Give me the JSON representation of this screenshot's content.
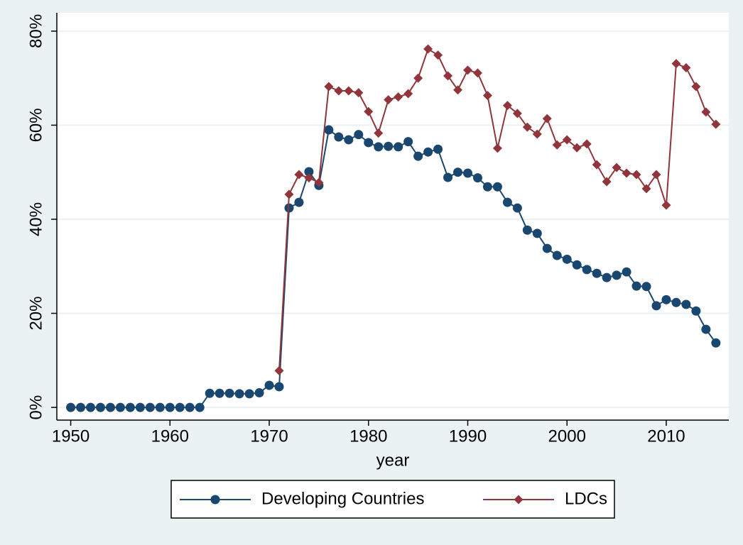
{
  "chart_data": {
    "type": "line",
    "x_label": "year",
    "x": [
      1950,
      1951,
      1952,
      1953,
      1954,
      1955,
      1956,
      1957,
      1958,
      1959,
      1960,
      1961,
      1962,
      1963,
      1964,
      1965,
      1966,
      1967,
      1968,
      1969,
      1970,
      1971,
      1972,
      1973,
      1974,
      1975,
      1976,
      1977,
      1978,
      1979,
      1980,
      1981,
      1982,
      1983,
      1984,
      1985,
      1986,
      1987,
      1988,
      1989,
      1990,
      1991,
      1992,
      1993,
      1994,
      1995,
      1996,
      1997,
      1998,
      1999,
      2000,
      2001,
      2002,
      2003,
      2004,
      2005,
      2006,
      2007,
      2008,
      2009,
      2010,
      2011,
      2012,
      2013,
      2014,
      2015
    ],
    "series": [
      {
        "name": "Developing Countries",
        "color": "#1a476f",
        "marker": "circle",
        "values": [
          0,
          0,
          0,
          0,
          0,
          0,
          0,
          0,
          0,
          0,
          0,
          0,
          0,
          0,
          3.0,
          3.0,
          3.0,
          2.9,
          2.9,
          3.1,
          4.7,
          4.4,
          42.4,
          43.6,
          50.1,
          47.2,
          59.0,
          57.5,
          56.9,
          58.0,
          56.3,
          55.4,
          55.5,
          55.4,
          56.5,
          53.4,
          54.3,
          54.9,
          48.9,
          50.0,
          49.8,
          48.8,
          46.9,
          46.9,
          43.6,
          42.4,
          37.7,
          37.0,
          33.8,
          32.3,
          31.5,
          30.3,
          29.3,
          28.5,
          27.6,
          28.1,
          28.8,
          25.8,
          25.7,
          21.6,
          22.9,
          22.3,
          21.9,
          20.5,
          16.6,
          13.7
        ]
      },
      {
        "name": "LDCs",
        "color": "#90353b",
        "marker": "diamond",
        "values": [
          null,
          null,
          null,
          null,
          null,
          null,
          null,
          null,
          null,
          null,
          null,
          null,
          null,
          null,
          null,
          null,
          null,
          null,
          null,
          null,
          null,
          7.8,
          45.3,
          49.5,
          48.8,
          47.8,
          68.2,
          67.3,
          67.3,
          66.9,
          62.9,
          58.3,
          65.4,
          66.0,
          66.7,
          70.0,
          76.2,
          74.9,
          70.5,
          67.5,
          71.7,
          71.1,
          66.3,
          55.1,
          64.2,
          62.5,
          59.6,
          58.1,
          61.4,
          55.8,
          56.9,
          55.2,
          56.0,
          51.6,
          48.0,
          51.0,
          49.8,
          49.5,
          46.5,
          49.5,
          43.0,
          73.1,
          72.2,
          68.2,
          62.8,
          60.2
        ]
      }
    ],
    "xlim": [
      1948.6,
      2016.3
    ],
    "xticks": [
      1950,
      1960,
      1970,
      1980,
      1990,
      2000,
      2010
    ],
    "ylim": [
      -2.7,
      83.9
    ],
    "yticks": [
      {
        "value": 0,
        "label": "0%"
      },
      {
        "value": 20,
        "label": "20%"
      },
      {
        "value": 40,
        "label": "40%"
      },
      {
        "value": 60,
        "label": "60%"
      },
      {
        "value": 80,
        "label": "80%"
      }
    ],
    "grid": true,
    "legend": "bottom"
  }
}
